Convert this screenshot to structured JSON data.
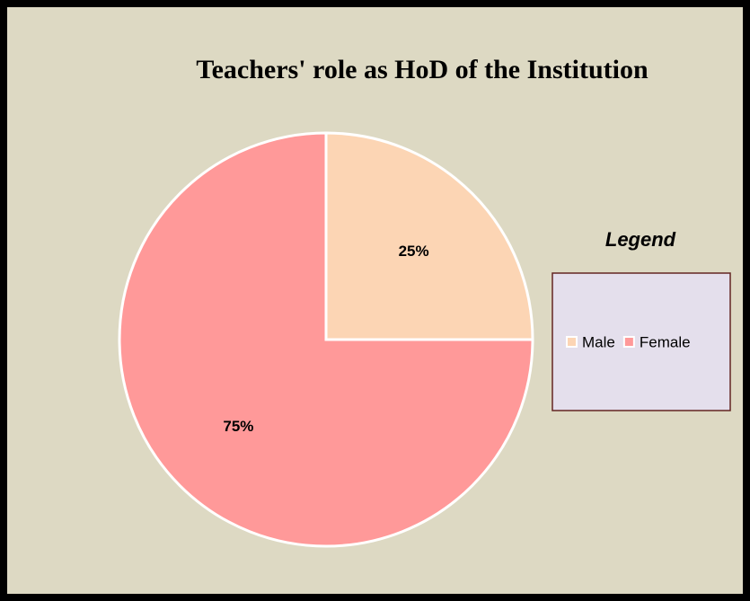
{
  "chart_data": {
    "type": "pie",
    "title": "Teachers' role as HoD of the Institution",
    "categories": [
      "Male",
      "Female"
    ],
    "values": [
      25,
      75
    ],
    "value_labels": [
      "25%",
      "75%"
    ],
    "colors": [
      "#fcd5b4",
      "#ff9999"
    ],
    "legend_title": "Legend",
    "legend": "right"
  }
}
